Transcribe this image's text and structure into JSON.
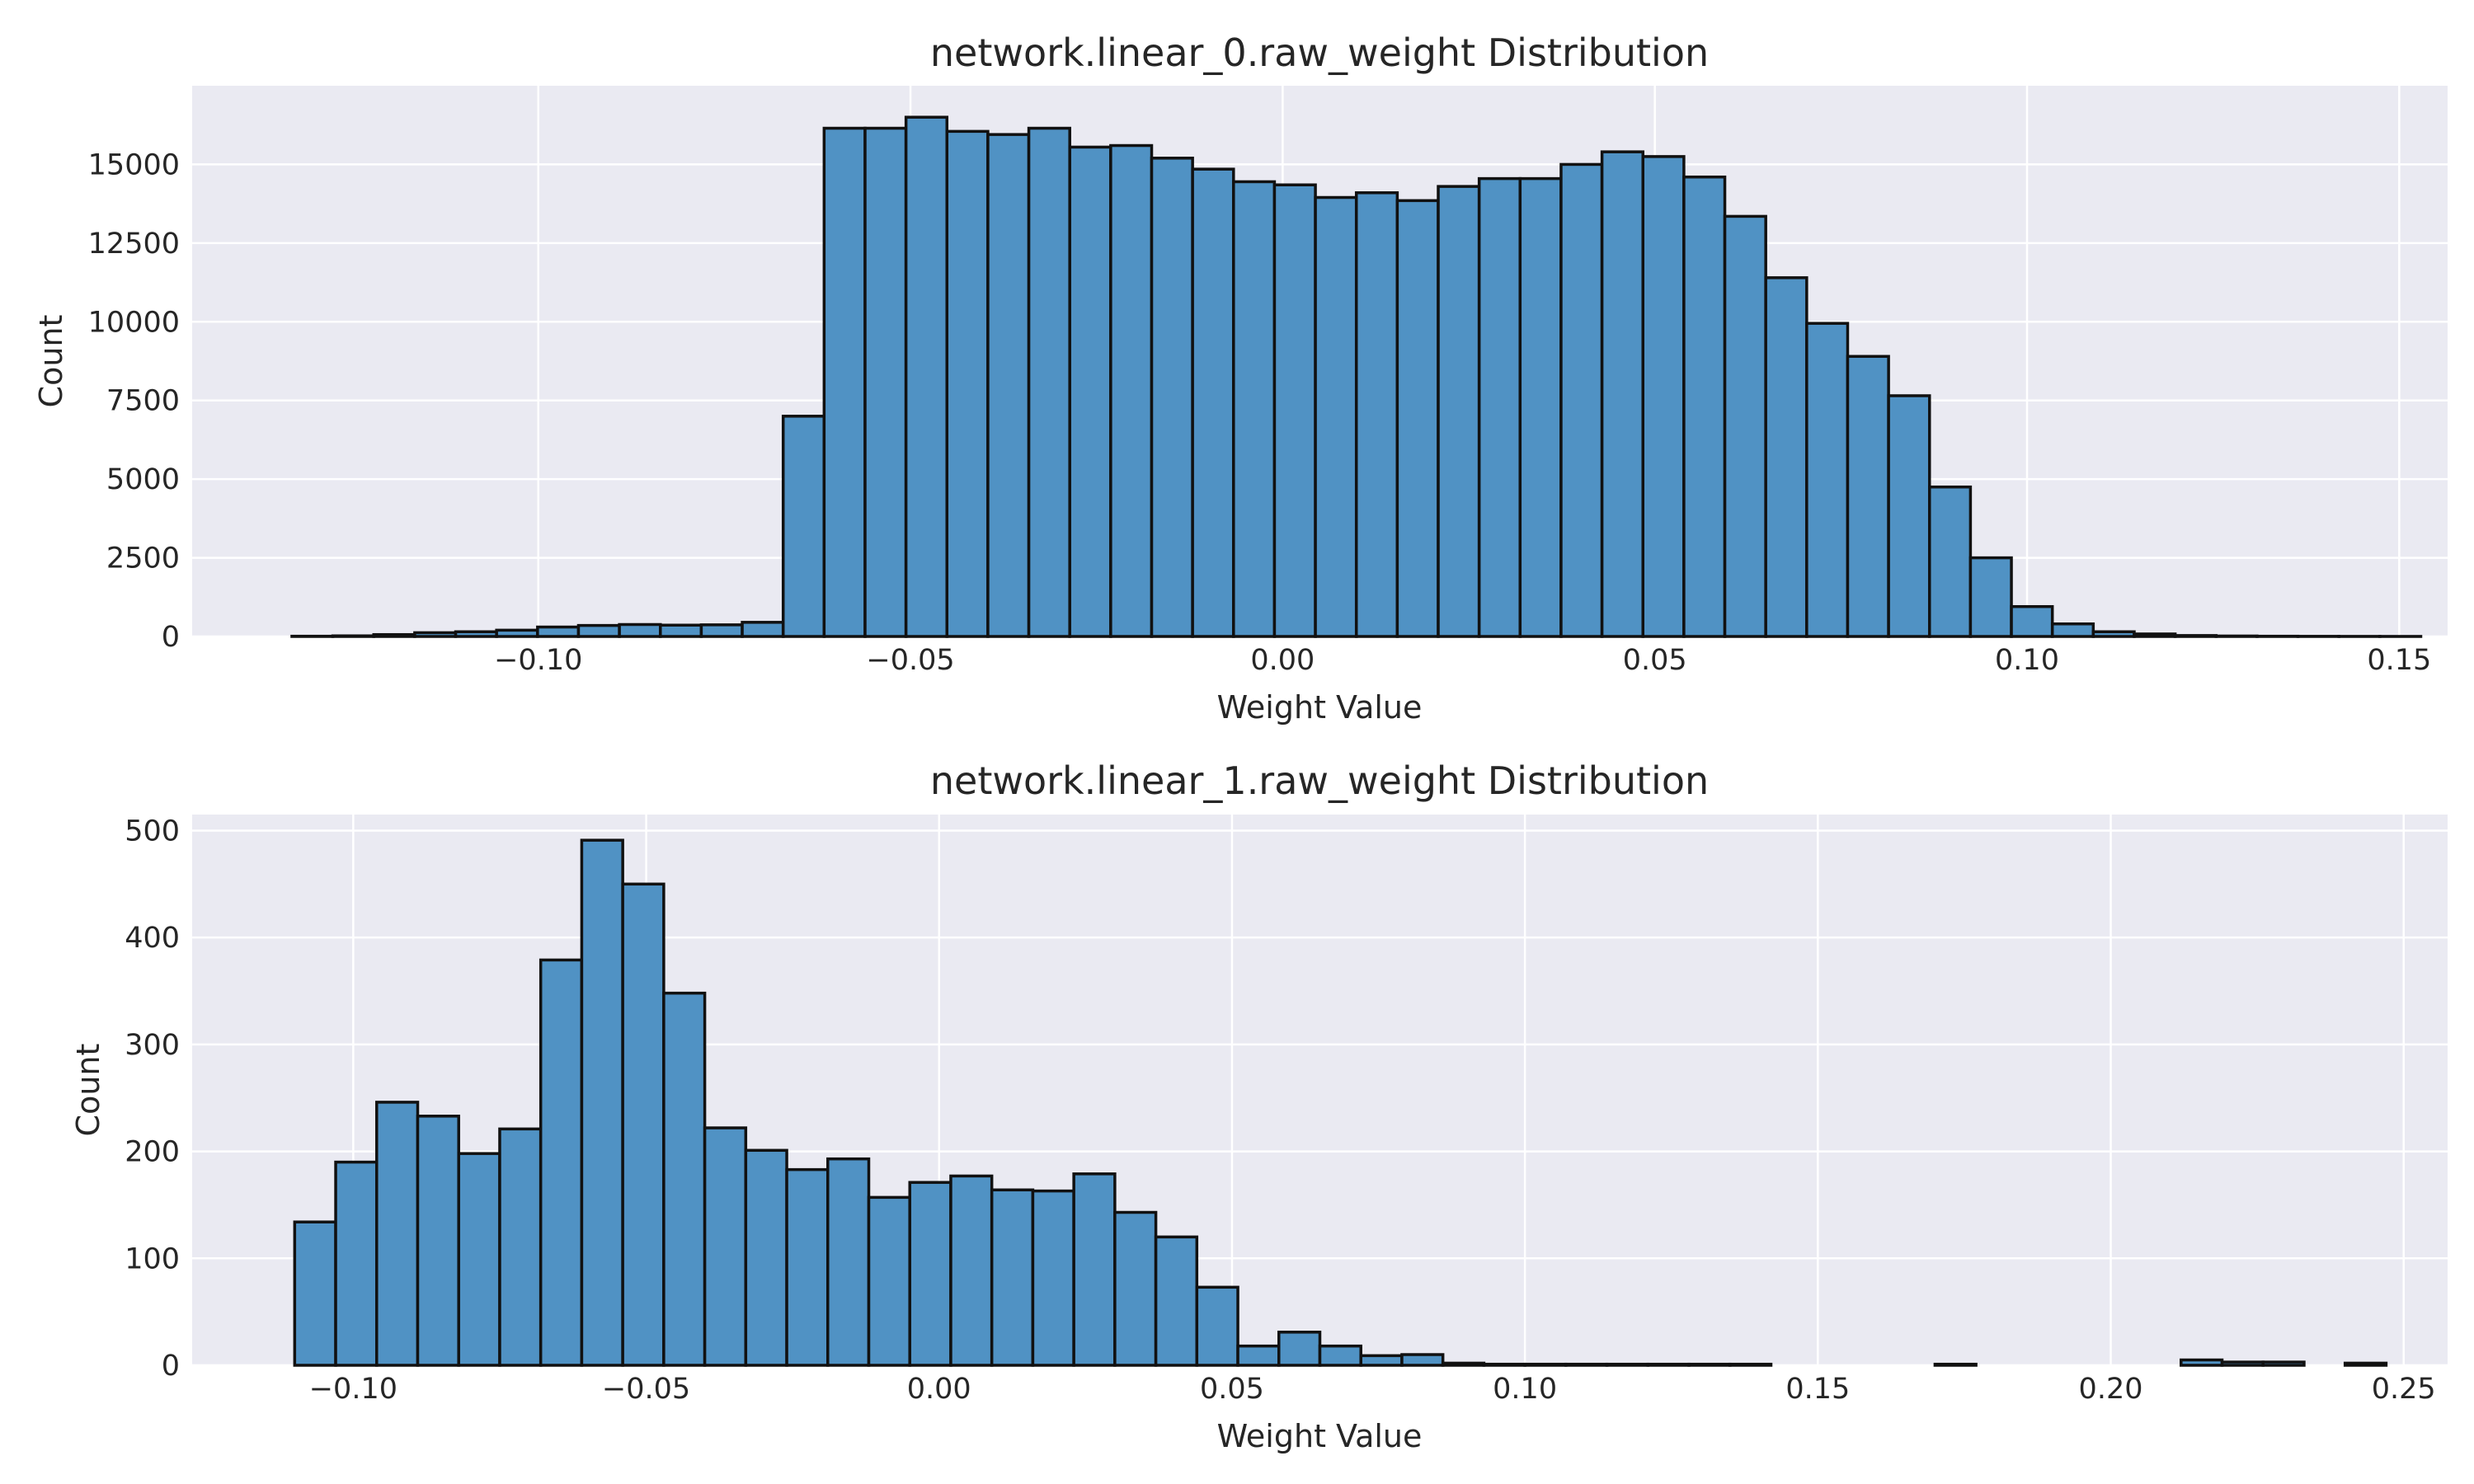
{
  "chart_data": [
    {
      "type": "bar",
      "title": "network.linear_0.raw_weight Distribution",
      "xlabel": "Weight Value",
      "ylabel": "Count",
      "xlim": [
        -0.1465,
        0.1565
      ],
      "ylim": [
        0,
        17500
      ],
      "xticks": [
        -0.1,
        -0.05,
        0.0,
        0.05,
        0.1,
        0.15
      ],
      "xtick_labels": [
        "−0.10",
        "−0.05",
        "0.00",
        "0.05",
        "0.10",
        "0.15"
      ],
      "yticks": [
        0,
        2500,
        5000,
        7500,
        10000,
        12500,
        15000
      ],
      "ytick_labels": [
        "0",
        "2500",
        "5000",
        "7500",
        "10000",
        "12500",
        "15000"
      ],
      "grid": true,
      "bin_start": -0.1331,
      "bin_width": 0.0055,
      "values": [
        8,
        20,
        60,
        120,
        150,
        200,
        300,
        350,
        380,
        360,
        370,
        450,
        7000,
        16150,
        16150,
        16500,
        16050,
        15950,
        16150,
        15550,
        15600,
        15200,
        14850,
        14450,
        14350,
        13950,
        14100,
        13850,
        14300,
        14550,
        14550,
        15000,
        15400,
        15250,
        14600,
        13350,
        11400,
        9950,
        8900,
        7650,
        4750,
        2500,
        950,
        400,
        150,
        80,
        30,
        15,
        8,
        5,
        3,
        2
      ]
    },
    {
      "type": "bar",
      "title": "network.linear_1.raw_weight Distribution",
      "xlabel": "Weight Value",
      "ylabel": "Count",
      "xlim": [
        -0.1275,
        0.2575
      ],
      "ylim": [
        0,
        515
      ],
      "xticks": [
        -0.1,
        -0.05,
        0.0,
        0.05,
        0.1,
        0.15,
        0.2,
        0.25
      ],
      "xtick_labels": [
        "−0.10",
        "−0.05",
        "0.00",
        "0.05",
        "0.10",
        "0.15",
        "0.20",
        "0.25"
      ],
      "yticks": [
        0,
        100,
        200,
        300,
        400,
        500
      ],
      "ytick_labels": [
        "0",
        "100",
        "200",
        "300",
        "400",
        "500"
      ],
      "grid": true,
      "bin_start": -0.11,
      "bin_width": 0.007,
      "values": [
        134,
        190,
        246,
        233,
        198,
        221,
        379,
        491,
        450,
        348,
        222,
        201,
        183,
        193,
        157,
        171,
        177,
        164,
        163,
        179,
        143,
        120,
        73,
        18,
        31,
        18,
        9,
        10,
        2,
        1,
        1,
        1,
        1,
        1,
        1,
        1,
        0,
        0,
        0,
        0,
        1,
        0,
        0,
        0,
        0,
        0,
        5,
        3,
        3,
        0,
        2
      ]
    }
  ]
}
